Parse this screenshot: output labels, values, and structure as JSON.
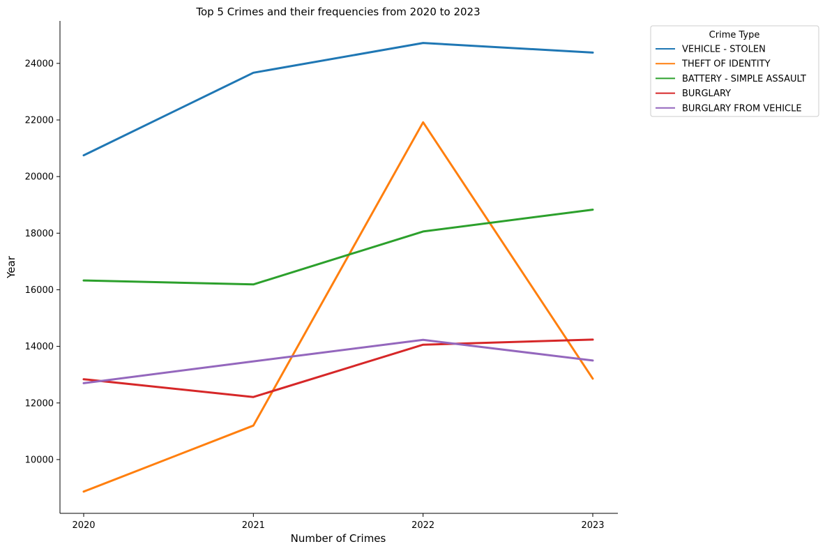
{
  "chart_data": {
    "type": "line",
    "title": "Top 5 Crimes and their frequencies from 2020 to 2023",
    "xlabel": "Number of Crimes",
    "ylabel": "Year",
    "x": [
      "2020",
      "2021",
      "2022",
      "2023"
    ],
    "ylim": [
      8100,
      25500
    ],
    "yticks": [
      "10000",
      "12000",
      "14000",
      "16000",
      "18000",
      "20000",
      "22000",
      "24000"
    ],
    "grid": false,
    "legend": {
      "title": "Crime Type",
      "placement": "outside-top-right"
    },
    "series": [
      {
        "name": "VEHICLE - STOLEN",
        "color": "#1f77b4",
        "values": [
          20750,
          23670,
          24720,
          24380
        ]
      },
      {
        "name": "THEFT OF IDENTITY",
        "color": "#ff7f0e",
        "values": [
          8870,
          11200,
          21920,
          12860
        ]
      },
      {
        "name": "BATTERY - SIMPLE ASSAULT",
        "color": "#2ca02c",
        "values": [
          16330,
          16190,
          18060,
          18830
        ]
      },
      {
        "name": "BURGLARY",
        "color": "#d62728",
        "values": [
          12840,
          12210,
          14060,
          14240
        ]
      },
      {
        "name": "BURGLARY FROM VEHICLE",
        "color": "#9467bd",
        "values": [
          12700,
          13470,
          14230,
          13500
        ]
      }
    ]
  }
}
